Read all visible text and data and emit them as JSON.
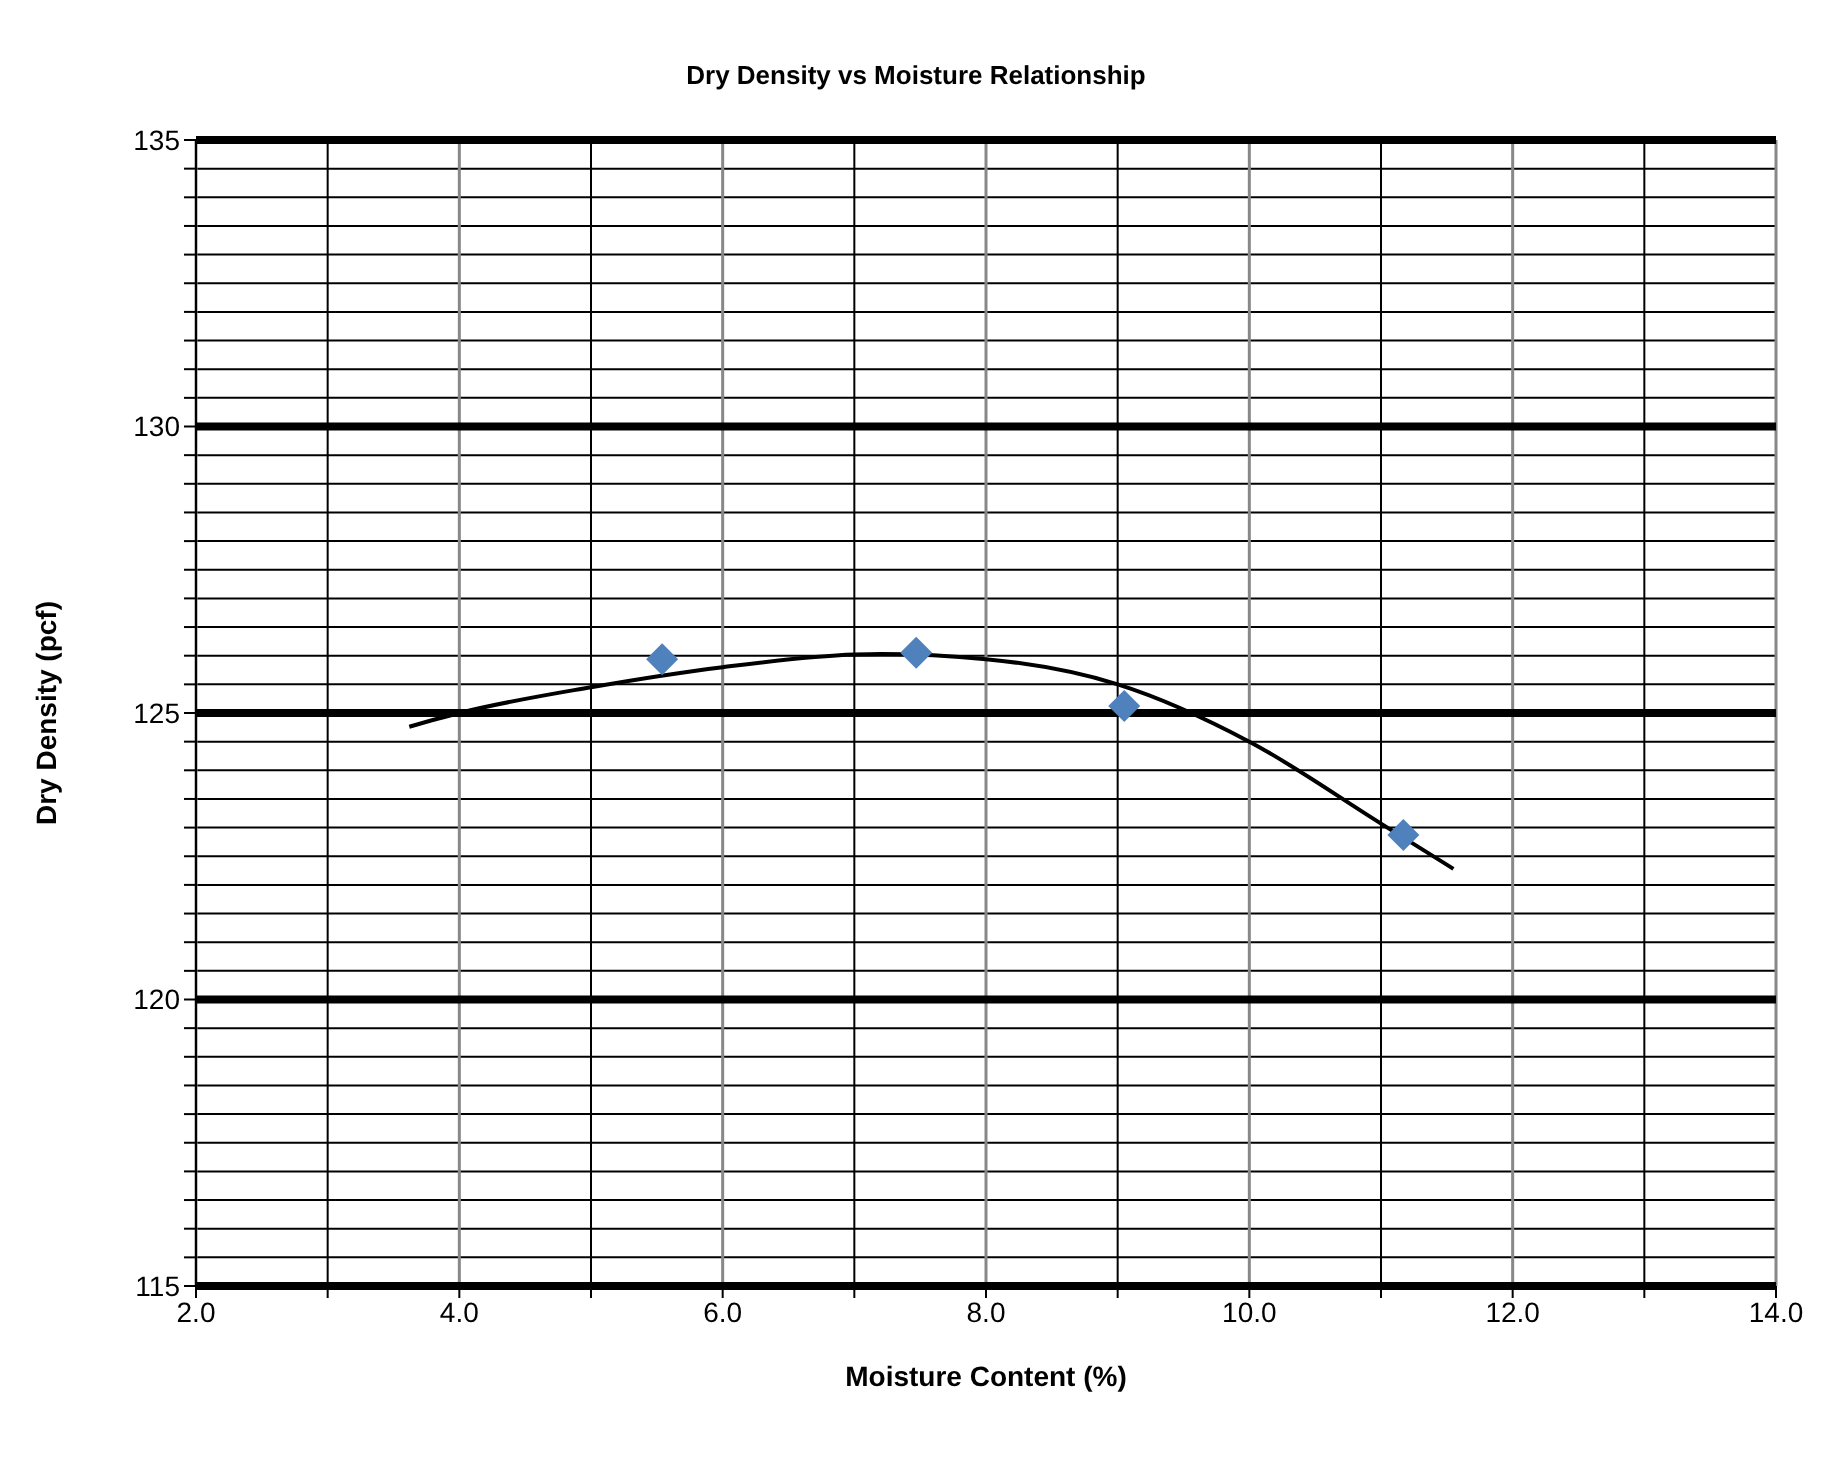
{
  "chart_data": {
    "type": "scatter",
    "title": "Dry Density vs Moisture Relationship",
    "xlabel": "Moisture Content (%)",
    "ylabel": "Dry Density (pcf)",
    "series": [
      {
        "color": "#4f81bd",
        "marker": "diamond",
        "x": [
          5.54,
          7.47,
          9.05,
          11.17
        ],
        "values": [
          125.94,
          126.05,
          125.12,
          122.87
        ]
      },
      {
        "type": "line",
        "color": "#000000",
        "marker": "none",
        "line_style": "solid",
        "x": [
          3.62,
          4.0,
          5.0,
          6.0,
          7.0,
          7.2,
          8.0,
          9.0,
          10.0,
          11.0,
          11.55
        ],
        "values": [
          124.76,
          125.0,
          125.45,
          125.8,
          126.02,
          126.03,
          125.94,
          125.5,
          124.5,
          123.07,
          122.28
        ]
      }
    ],
    "xlim": [
      2,
      14
    ],
    "xticks": [
      {
        "value": 2,
        "label": "2.0"
      },
      {
        "value": 3,
        "label": null
      },
      {
        "value": 4,
        "label": "4.0"
      },
      {
        "value": 5,
        "label": null
      },
      {
        "value": 6,
        "label": "6.0"
      },
      {
        "value": 7,
        "label": null
      },
      {
        "value": 8,
        "label": "8.0"
      },
      {
        "value": 9,
        "label": null
      },
      {
        "value": 10,
        "label": "10.0"
      },
      {
        "value": 11,
        "label": null
      },
      {
        "value": 12,
        "label": "12.0"
      },
      {
        "value": 13,
        "label": null
      },
      {
        "value": 14,
        "label": "14.0"
      }
    ],
    "ylim": [
      115,
      135
    ],
    "yticks": [
      115,
      {
        "value": 115.5,
        "label": null
      },
      {
        "value": 116,
        "label": null
      },
      {
        "value": 116.5,
        "label": null
      },
      {
        "value": 117,
        "label": null
      },
      {
        "value": 117.5,
        "label": null
      },
      {
        "value": 118,
        "label": null
      },
      {
        "value": 118.5,
        "label": null
      },
      {
        "value": 119,
        "label": null
      },
      {
        "value": 119.5,
        "label": null
      },
      120,
      {
        "value": 120.5,
        "label": null
      },
      {
        "value": 121,
        "label": null
      },
      {
        "value": 121.5,
        "label": null
      },
      {
        "value": 122,
        "label": null
      },
      {
        "value": 122.5,
        "label": null
      },
      {
        "value": 123,
        "label": null
      },
      {
        "value": 123.5,
        "label": null
      },
      {
        "value": 124,
        "label": null
      },
      {
        "value": 124.5,
        "label": null
      },
      125,
      {
        "value": 125.5,
        "label": null
      },
      {
        "value": 126,
        "label": null
      },
      {
        "value": 126.5,
        "label": null
      },
      {
        "value": 127,
        "label": null
      },
      {
        "value": 127.5,
        "label": null
      },
      {
        "value": 128,
        "label": null
      },
      {
        "value": 128.5,
        "label": null
      },
      {
        "value": 129,
        "label": null
      },
      {
        "value": 129.5,
        "label": null
      },
      130,
      {
        "value": 130.5,
        "label": null
      },
      {
        "value": 131,
        "label": null
      },
      {
        "value": 131.5,
        "label": null
      },
      {
        "value": 132,
        "label": null
      },
      {
        "value": 132.5,
        "label": null
      },
      {
        "value": 133,
        "label": null
      },
      {
        "value": 133.5,
        "label": null
      },
      {
        "value": 134,
        "label": null
      },
      {
        "value": 134.5,
        "label": null
      },
      135
    ],
    "grid": true,
    "legend": false
  }
}
